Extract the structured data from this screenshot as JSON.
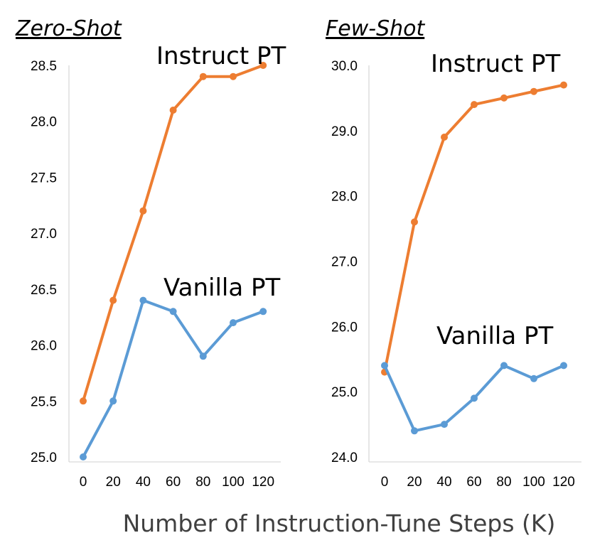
{
  "chart_data": {
    "type": "line",
    "xlabel": "Number of Instruction-Tune Steps (K)",
    "x_ticks": [
      "0",
      "20",
      "40",
      "60",
      "80",
      "100",
      "120"
    ],
    "panels": [
      {
        "title": "Zero-Shot",
        "ylim": [
          25.0,
          28.5
        ],
        "y_ticks": [
          "25.0",
          "25.5",
          "26.0",
          "26.5",
          "27.0",
          "27.5",
          "28.0",
          "28.5"
        ],
        "series": [
          {
            "name": "Instruct PT",
            "color": "#ed7d31",
            "x": [
              0,
              20,
              40,
              60,
              80,
              100,
              120
            ],
            "values": [
              25.5,
              26.4,
              27.2,
              28.1,
              28.4,
              28.4,
              28.5
            ]
          },
          {
            "name": "Vanilla PT",
            "color": "#5b9bd5",
            "x": [
              0,
              20,
              40,
              60,
              80,
              100,
              120
            ],
            "values": [
              25.0,
              25.5,
              26.4,
              26.3,
              25.9,
              26.2,
              26.3
            ]
          }
        ]
      },
      {
        "title": "Few-Shot",
        "ylim": [
          24.0,
          30.0
        ],
        "y_ticks": [
          "24.0",
          "25.0",
          "26.0",
          "27.0",
          "28.0",
          "29.0",
          "30.0"
        ],
        "series": [
          {
            "name": "Instruct PT",
            "color": "#ed7d31",
            "x": [
              0,
              20,
              40,
              60,
              80,
              100,
              120
            ],
            "values": [
              25.3,
              27.6,
              28.9,
              29.4,
              29.5,
              29.6,
              29.7
            ]
          },
          {
            "name": "Vanilla PT",
            "color": "#5b9bd5",
            "x": [
              0,
              20,
              40,
              60,
              80,
              100,
              120
            ],
            "values": [
              25.4,
              24.4,
              24.5,
              24.9,
              25.4,
              25.2,
              25.4
            ]
          }
        ]
      }
    ]
  }
}
